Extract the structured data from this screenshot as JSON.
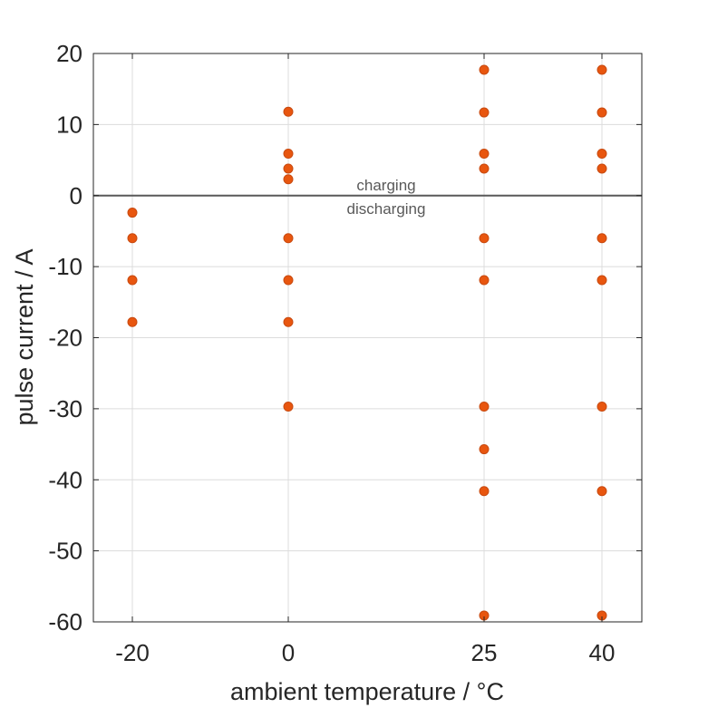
{
  "chart_data": {
    "type": "scatter",
    "xlabel": "ambient temperature / °C",
    "ylabel": "pulse current / A",
    "x_ticks": [
      {
        "value": -20,
        "label": "-20"
      },
      {
        "value": 0,
        "label": "0"
      },
      {
        "value": 25,
        "label": "25"
      },
      {
        "value": 40,
        "label": "40"
      }
    ],
    "y_ticks": [
      {
        "value": 20,
        "label": "20"
      },
      {
        "value": 10,
        "label": "10"
      },
      {
        "value": 0,
        "label": "0"
      },
      {
        "value": -10,
        "label": "-10"
      },
      {
        "value": -20,
        "label": "-20"
      },
      {
        "value": -30,
        "label": "-30"
      },
      {
        "value": -40,
        "label": "-40"
      },
      {
        "value": -50,
        "label": "-50"
      },
      {
        "value": -60,
        "label": "-60"
      }
    ],
    "xlim": [
      -25,
      45
    ],
    "ylim": [
      -60,
      20
    ],
    "grid": true,
    "zero_line": 0,
    "annotations": {
      "above": "charging",
      "below": "discharging"
    },
    "marker_color": "#e8560f",
    "marker_edge_color": "#c84a10",
    "zero_line_color": "#595959",
    "points": [
      {
        "x": -20,
        "y": -2.4
      },
      {
        "x": -20,
        "y": -6
      },
      {
        "x": -20,
        "y": -11.9
      },
      {
        "x": -20,
        "y": -17.8
      },
      {
        "x": 0,
        "y": 11.8
      },
      {
        "x": 0,
        "y": 5.9
      },
      {
        "x": 0,
        "y": 3.8
      },
      {
        "x": 0,
        "y": 2.3
      },
      {
        "x": 0,
        "y": -6
      },
      {
        "x": 0,
        "y": -11.9
      },
      {
        "x": 0,
        "y": -17.8
      },
      {
        "x": 0,
        "y": -29.7
      },
      {
        "x": 25,
        "y": 17.7
      },
      {
        "x": 25,
        "y": 11.7
      },
      {
        "x": 25,
        "y": 5.9
      },
      {
        "x": 25,
        "y": 3.8
      },
      {
        "x": 25,
        "y": -6
      },
      {
        "x": 25,
        "y": -11.9
      },
      {
        "x": 25,
        "y": -29.7
      },
      {
        "x": 25,
        "y": -35.7
      },
      {
        "x": 25,
        "y": -41.6
      },
      {
        "x": 25,
        "y": -59.1
      },
      {
        "x": 40,
        "y": 17.7
      },
      {
        "x": 40,
        "y": 11.7
      },
      {
        "x": 40,
        "y": 5.9
      },
      {
        "x": 40,
        "y": 3.8
      },
      {
        "x": 40,
        "y": -6
      },
      {
        "x": 40,
        "y": -11.9
      },
      {
        "x": 40,
        "y": -29.7
      },
      {
        "x": 40,
        "y": -41.6
      },
      {
        "x": 40,
        "y": -59.1
      }
    ]
  }
}
